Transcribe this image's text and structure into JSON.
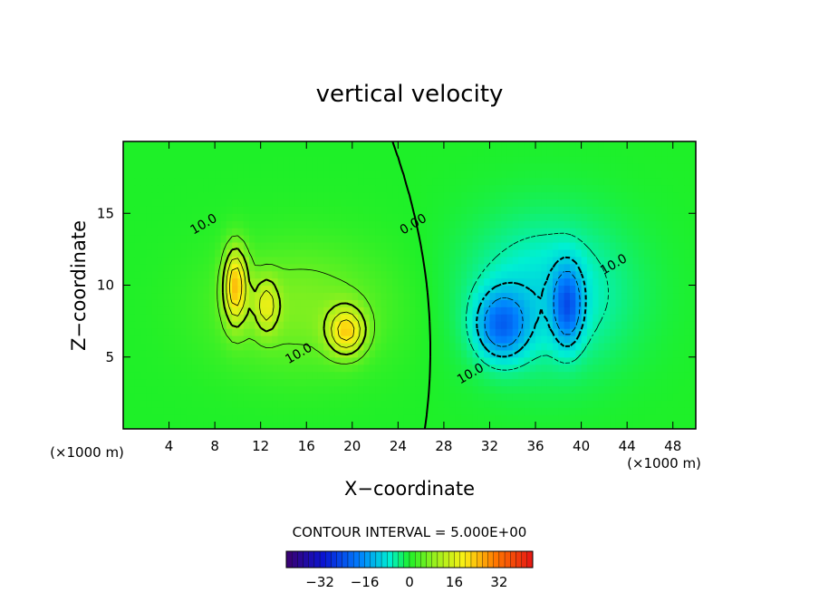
{
  "chart_data": {
    "type": "heatmap",
    "title": "vertical velocity",
    "xlabel": "X−coordinate",
    "ylabel": "Z−coordinate",
    "x_units": "(×1000 m)",
    "y_units": "(×1000 m)",
    "xlim": [
      0,
      50
    ],
    "ylim": [
      0,
      20
    ],
    "x_ticks": [
      4,
      8,
      12,
      16,
      20,
      24,
      28,
      32,
      36,
      40,
      44,
      48
    ],
    "y_ticks": [
      5,
      10,
      15
    ],
    "contour_interval_label": "CONTOUR INTERVAL = 5.000E+00",
    "contour_interval": 5,
    "contour_labels": [
      {
        "text": "10.0",
        "x": 7.2,
        "y": 14.0
      },
      {
        "text": "10.0",
        "x": 15.5,
        "y": 5.0
      },
      {
        "text": "0.00",
        "x": 25.5,
        "y": 14.0
      },
      {
        "text": "10.0",
        "x": 43.0,
        "y": 11.2
      },
      {
        "text": "10.0",
        "x": 30.5,
        "y": 3.6
      }
    ],
    "colorbar": {
      "min": -44,
      "max": 44,
      "ticks": [
        -32,
        -16,
        0,
        16,
        32
      ],
      "tick_labels": [
        "−32",
        "−16",
        "0",
        "16",
        "32"
      ]
    },
    "cells": [
      {
        "x": 9.8,
        "z": 10.0,
        "w": 22,
        "sx": 1.0,
        "sz": 2.6
      },
      {
        "x": 12.5,
        "z": 8.6,
        "w": 13,
        "sx": 1.0,
        "sz": 1.8
      },
      {
        "x": 19.5,
        "z": 6.8,
        "w": 19,
        "sx": 1.6,
        "sz": 1.6
      },
      {
        "x": 15.5,
        "z": 8.5,
        "w": 7,
        "sx": 8.0,
        "sz": 4.5
      },
      {
        "x": 33.0,
        "z": 7.2,
        "w": -17,
        "sx": 2.2,
        "sz": 2.3
      },
      {
        "x": 38.8,
        "z": 8.6,
        "w": -17,
        "sx": 1.2,
        "sz": 2.6
      },
      {
        "x": 37.0,
        "z": 9.5,
        "w": -9,
        "sx": 7.0,
        "sz": 5.2
      }
    ]
  }
}
